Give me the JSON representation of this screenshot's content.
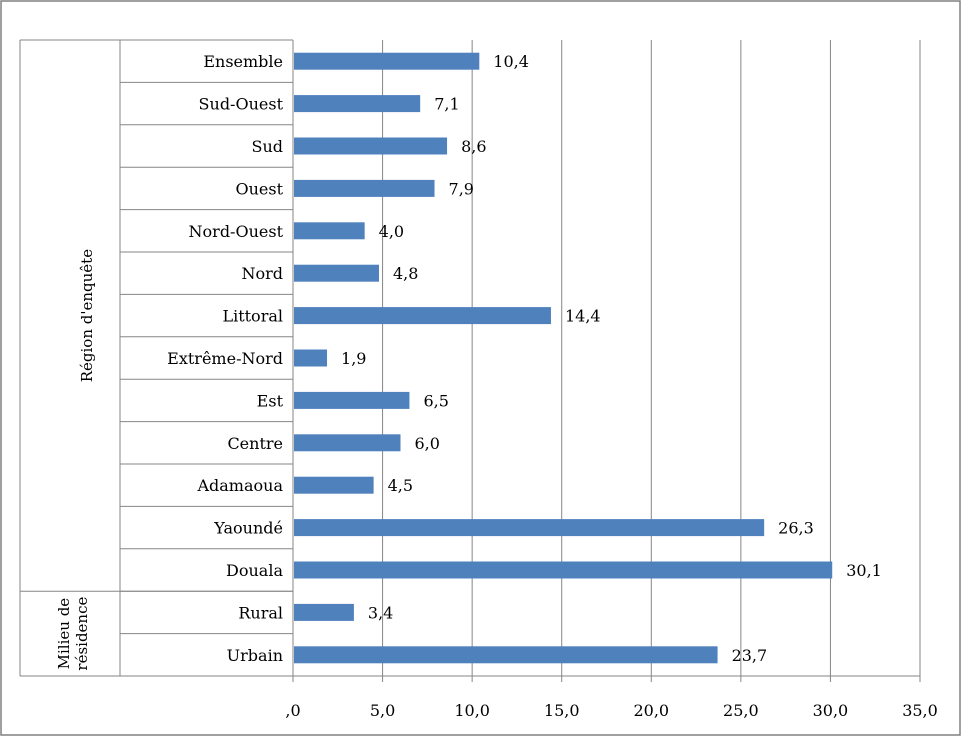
{
  "chart_data": {
    "type": "bar",
    "orientation": "horizontal",
    "categories": [
      "Ensemble",
      "Sud-Ouest",
      "Sud",
      "Ouest",
      "Nord-Ouest",
      "Nord",
      "Littoral",
      "Extrême-Nord",
      "Est",
      "Centre",
      "Adamaoua",
      "Yaoundé",
      "Douala",
      "Rural",
      "Urbain"
    ],
    "values": [
      10.4,
      7.1,
      8.6,
      7.9,
      4.0,
      4.8,
      14.4,
      1.9,
      6.5,
      6.0,
      4.5,
      26.3,
      30.1,
      3.4,
      23.7
    ],
    "value_labels": [
      "10,4",
      "7,1",
      "8,6",
      "7,9",
      "4,0",
      "4,8",
      "14,4",
      "1,9",
      "6,5",
      "6,0",
      "4,5",
      "26,3",
      "30,1",
      "3,4",
      "23,7"
    ],
    "groups": [
      {
        "name": "Région d'enquête",
        "categories": [
          "Ensemble",
          "Sud-Ouest",
          "Sud",
          "Ouest",
          "Nord-Ouest",
          "Nord",
          "Littoral",
          "Extrême-Nord",
          "Est",
          "Centre",
          "Adamaoua",
          "Yaoundé",
          "Douala"
        ]
      },
      {
        "name": "Milieu de résidence",
        "categories": [
          "Rural",
          "Urbain"
        ]
      }
    ],
    "xlim": [
      0,
      35
    ],
    "x_ticks": [
      0,
      5,
      10,
      15,
      20,
      25,
      30,
      35
    ],
    "x_tick_labels": [
      ",0",
      "5,0",
      "10,0",
      "15,0",
      "20,0",
      "25,0",
      "30,0",
      "35,0"
    ],
    "grid": "vertical",
    "legend": "none",
    "bar_color": "#4F81BD",
    "title": "",
    "xlabel": "",
    "ylabel": ""
  }
}
